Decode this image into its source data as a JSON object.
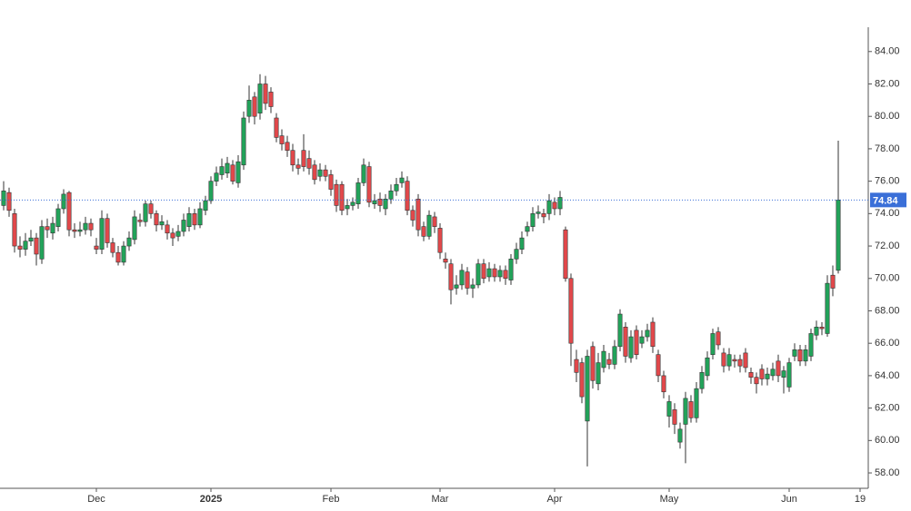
{
  "chart_data": {
    "type": "candlestick",
    "categories": [
      null,
      null,
      null,
      null,
      null,
      null,
      null,
      null,
      null,
      null,
      null,
      null,
      null,
      null,
      null,
      null,
      null,
      "Dec",
      null,
      null,
      null,
      null,
      null,
      null,
      null,
      null,
      null,
      null,
      null,
      null,
      null,
      null,
      null,
      null,
      null,
      null,
      null,
      null,
      "2025",
      null,
      null,
      null,
      null,
      null,
      null,
      null,
      null,
      null,
      null,
      null,
      null,
      null,
      null,
      null,
      null,
      null,
      null,
      null,
      null,
      null,
      "Feb",
      null,
      null,
      null,
      null,
      null,
      null,
      null,
      null,
      null,
      null,
      null,
      null,
      null,
      null,
      null,
      null,
      null,
      null,
      null,
      "Mar",
      null,
      null,
      null,
      null,
      null,
      null,
      null,
      null,
      null,
      null,
      null,
      null,
      null,
      null,
      null,
      null,
      null,
      null,
      null,
      null,
      "Apr",
      null,
      null,
      null,
      null,
      null,
      null,
      null,
      null,
      null,
      null,
      null,
      null,
      null,
      null,
      null,
      null,
      null,
      null,
      null,
      null,
      "May",
      null,
      null,
      null,
      null,
      null,
      null,
      null,
      null,
      null,
      null,
      null,
      null,
      null,
      null,
      null,
      null,
      null,
      null,
      null,
      null,
      null,
      "Jun",
      null,
      null,
      null,
      null,
      null,
      null,
      null,
      null,
      null,
      null,
      null,
      null,
      "19"
    ],
    "open": [
      74.5,
      75.3,
      74.0,
      72.0,
      71.8,
      72.3,
      72.5,
      71.2,
      73.2,
      72.8,
      73.2,
      74.3,
      75.3,
      73.0,
      72.9,
      73.0,
      73.4,
      72.0,
      71.8,
      73.7,
      72.2,
      71.6,
      71.0,
      72.0,
      72.4,
      73.6,
      73.5,
      74.6,
      74.0,
      73.3,
      73.3,
      72.8,
      72.6,
      72.9,
      73.2,
      74.0,
      73.3,
      74.2,
      74.8,
      76.0,
      76.4,
      76.5,
      77.0,
      75.9,
      77.0,
      80.0,
      81.2,
      80.2,
      82.0,
      81.5,
      79.9,
      78.8,
      78.4,
      77.9,
      77.0,
      77.9,
      77.4,
      77.0,
      76.3,
      76.7,
      76.4,
      75.8,
      75.8,
      74.3,
      74.5,
      74.6,
      75.9,
      76.9,
      74.6,
      74.9,
      74.3,
      74.9,
      75.4,
      75.9,
      76.0,
      74.2,
      74.9,
      73.2,
      72.6,
      73.8,
      73.1,
      71.2,
      70.9,
      69.4,
      69.6,
      70.4,
      69.4,
      69.6,
      70.9,
      70.1,
      70.6,
      70.1,
      70.5,
      69.9,
      71.2,
      71.8,
      72.9,
      73.2,
      74.0,
      74.0,
      74.0,
      74.7,
      74.3,
      73.0,
      70.0,
      65.0,
      64.8,
      61.2,
      65.8,
      63.5,
      64.5,
      65.0,
      64.7,
      65.8,
      67.0,
      65.1,
      66.8,
      66.0,
      66.4,
      67.3,
      65.3,
      64.0,
      61.5,
      61.9,
      59.9,
      61.0,
      62.4,
      61.4,
      63.2,
      64.0,
      65.3,
      66.7,
      65.4,
      64.6,
      65.0,
      65.0,
      65.4,
      64.2,
      63.9,
      64.4,
      63.8,
      64.0,
      64.9,
      63.9,
      63.3,
      65.2,
      65.6,
      64.9,
      65.2,
      66.5,
      67.0,
      66.6,
      70.2,
      70.5,
      null,
      null,
      null,
      null
    ],
    "high": [
      76.0,
      75.6,
      74.3,
      72.6,
      72.8,
      73.0,
      72.8,
      73.6,
      73.7,
      73.8,
      74.6,
      75.5,
      75.4,
      73.4,
      73.5,
      73.8,
      73.7,
      72.5,
      74.2,
      74.0,
      72.5,
      72.0,
      72.3,
      72.9,
      74.2,
      74.0,
      74.8,
      74.8,
      74.2,
      73.9,
      73.6,
      73.1,
      73.3,
      74.0,
      74.4,
      74.3,
      74.7,
      75.1,
      76.3,
      76.9,
      77.4,
      77.5,
      77.3,
      77.6,
      80.3,
      81.9,
      81.5,
      82.6,
      82.5,
      81.8,
      80.2,
      79.2,
      78.8,
      78.3,
      77.4,
      78.9,
      77.9,
      77.3,
      77.1,
      77.0,
      76.7,
      76.1,
      76.0,
      74.9,
      75.0,
      76.2,
      77.4,
      77.2,
      75.2,
      75.3,
      75.2,
      75.8,
      76.2,
      76.6,
      76.3,
      74.5,
      75.2,
      73.5,
      74.2,
      74.1,
      73.4,
      71.6,
      71.2,
      70.2,
      70.9,
      70.7,
      70.0,
      71.2,
      71.2,
      71.0,
      70.9,
      70.8,
      70.8,
      71.5,
      72.2,
      72.9,
      73.5,
      74.4,
      74.5,
      74.3,
      75.2,
      75.0,
      75.4,
      73.2,
      70.3,
      65.6,
      65.1,
      65.6,
      66.1,
      65.4,
      65.9,
      65.4,
      66.2,
      68.1,
      67.3,
      66.8,
      67.1,
      66.8,
      67.2,
      67.6,
      65.6,
      64.3,
      62.8,
      62.3,
      61.1,
      63.0,
      62.8,
      63.6,
      64.6,
      65.5,
      66.9,
      67.0,
      65.7,
      65.7,
      65.3,
      65.3,
      65.7,
      64.5,
      64.2,
      64.7,
      64.5,
      64.8,
      65.3,
      64.6,
      65.1,
      66.0,
      65.9,
      65.9,
      66.9,
      67.4,
      67.3,
      70.2,
      70.8,
      78.5,
      null,
      null,
      null,
      null
    ],
    "low": [
      74.2,
      73.8,
      71.6,
      71.3,
      71.4,
      72.0,
      70.8,
      70.9,
      72.5,
      72.4,
      72.9,
      74.0,
      72.6,
      72.5,
      72.6,
      72.7,
      72.6,
      71.5,
      71.5,
      71.9,
      71.3,
      70.8,
      70.8,
      71.7,
      72.1,
      73.2,
      73.2,
      73.7,
      72.9,
      73.0,
      72.4,
      72.0,
      72.3,
      72.6,
      72.9,
      73.0,
      73.1,
      73.9,
      74.6,
      75.7,
      76.1,
      76.2,
      75.8,
      75.6,
      76.7,
      79.6,
      79.5,
      79.8,
      80.4,
      80.2,
      78.4,
      77.9,
      77.5,
      76.6,
      76.4,
      76.6,
      76.4,
      75.8,
      76.0,
      76.0,
      75.1,
      74.1,
      73.9,
      73.9,
      74.2,
      74.3,
      75.7,
      74.4,
      74.3,
      74.1,
      73.9,
      74.6,
      75.1,
      75.6,
      73.9,
      73.2,
      72.6,
      72.3,
      72.4,
      72.8,
      71.2,
      70.6,
      68.4,
      69.0,
      69.3,
      69.0,
      68.8,
      69.4,
      69.7,
      69.8,
      69.8,
      69.8,
      69.6,
      69.6,
      70.9,
      71.5,
      72.6,
      72.9,
      73.7,
      73.4,
      73.6,
      73.9,
      73.9,
      69.8,
      64.6,
      63.6,
      62.3,
      58.4,
      63.2,
      63.1,
      64.2,
      64.4,
      64.4,
      65.5,
      64.8,
      64.8,
      65.0,
      65.7,
      66.1,
      65.4,
      63.6,
      62.6,
      60.8,
      60.4,
      59.5,
      58.6,
      61.1,
      61.1,
      62.9,
      63.7,
      65.0,
      65.6,
      64.2,
      64.3,
      64.5,
      64.2,
      64.2,
      63.5,
      62.9,
      63.4,
      63.4,
      63.7,
      63.6,
      62.9,
      63.0,
      64.9,
      64.6,
      64.6,
      64.9,
      66.2,
      66.5,
      66.4,
      68.9,
      70.3,
      null,
      null,
      null,
      null
    ],
    "close": [
      75.4,
      74.2,
      72.0,
      71.8,
      72.3,
      72.5,
      71.5,
      73.2,
      73.0,
      73.4,
      74.3,
      75.2,
      73.0,
      72.9,
      73.0,
      73.4,
      73.0,
      71.8,
      73.7,
      72.2,
      71.6,
      71.0,
      72.0,
      72.5,
      73.8,
      73.5,
      74.6,
      74.0,
      73.3,
      73.5,
      72.8,
      72.5,
      72.9,
      73.6,
      74.0,
      73.3,
      74.3,
      74.8,
      76.0,
      76.5,
      76.9,
      77.1,
      76.0,
      77.2,
      79.9,
      81.0,
      80.0,
      82.0,
      80.8,
      80.6,
      78.7,
      78.3,
      77.9,
      77.0,
      76.8,
      76.9,
      76.8,
      76.1,
      76.7,
      76.3,
      75.5,
      74.5,
      74.2,
      74.5,
      74.7,
      75.9,
      77.0,
      74.7,
      74.8,
      74.5,
      74.9,
      75.4,
      75.8,
      76.2,
      74.2,
      73.6,
      73.0,
      72.6,
      73.9,
      73.2,
      71.6,
      71.0,
      69.3,
      69.6,
      70.5,
      69.4,
      69.6,
      70.9,
      70.0,
      70.6,
      70.1,
      70.5,
      70.0,
      71.2,
      71.8,
      72.5,
      73.2,
      74.0,
      74.1,
      73.8,
      74.8,
      74.3,
      75.0,
      70.0,
      66.0,
      64.2,
      62.7,
      65.2,
      63.7,
      64.8,
      65.5,
      64.7,
      65.8,
      67.8,
      65.2,
      66.4,
      65.3,
      66.4,
      66.8,
      65.8,
      64.0,
      63.0,
      62.4,
      61.0,
      60.7,
      62.6,
      61.4,
      63.2,
      64.2,
      65.1,
      66.6,
      65.9,
      64.6,
      65.3,
      64.9,
      64.6,
      64.5,
      63.9,
      63.5,
      63.8,
      64.1,
      64.4,
      64.0,
      64.3,
      64.8,
      65.6,
      64.9,
      65.6,
      66.6,
      67.0,
      66.9,
      69.7,
      69.4,
      74.84,
      null,
      null,
      null,
      null
    ],
    "up_color": "#22a35a",
    "down_color": "#e2484b",
    "last_price_color": "#3a6fd8",
    "ylim": [
      57.05,
      85.5
    ],
    "yticks": [
      {
        "value": 58,
        "label": "58.00"
      },
      {
        "value": 60,
        "label": "60.00"
      },
      {
        "value": 62,
        "label": "62.00"
      },
      {
        "value": 64,
        "label": "64.00"
      },
      {
        "value": 66,
        "label": "66.00"
      },
      {
        "value": 68,
        "label": "68.00"
      },
      {
        "value": 70,
        "label": "70.00"
      },
      {
        "value": 72,
        "label": "72.00"
      },
      {
        "value": 74,
        "label": "74.00"
      },
      {
        "value": 76,
        "label": "76.00"
      },
      {
        "value": 78,
        "label": "78.00"
      },
      {
        "value": 80,
        "label": "80.00"
      },
      {
        "value": 82,
        "label": "82.00"
      },
      {
        "value": 84,
        "label": "84.00"
      }
    ],
    "grid": false
  }
}
